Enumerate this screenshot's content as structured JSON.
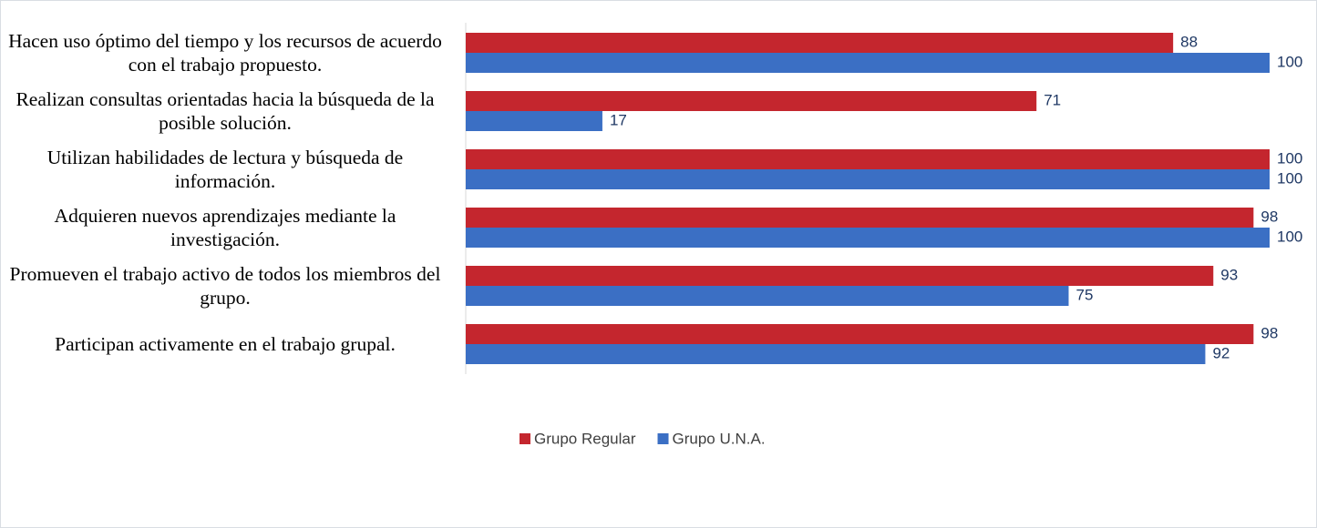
{
  "chart_data": {
    "type": "bar",
    "orientation": "horizontal",
    "categories": [
      "Hacen uso óptimo del tiempo y los recursos de acuerdo con el trabajo propuesto.",
      "Realizan consultas orientadas hacia la búsqueda de la posible solución.",
      "Utilizan habilidades de lectura y búsqueda de información.",
      "Adquieren nuevos aprendizajes mediante la investigación.",
      "Promueven el trabajo activo de todos los miembros del grupo.",
      "Participan activamente en el trabajo grupal."
    ],
    "series": [
      {
        "name": "Grupo Regular",
        "color": "#c4262e",
        "values": [
          88,
          71,
          100,
          98,
          93,
          98
        ]
      },
      {
        "name": "Grupo U.N.A.",
        "color": "#3b6fc4",
        "values": [
          100,
          17,
          100,
          100,
          75,
          92
        ]
      }
    ],
    "xlim": [
      0,
      100
    ],
    "legend": "bottom"
  }
}
